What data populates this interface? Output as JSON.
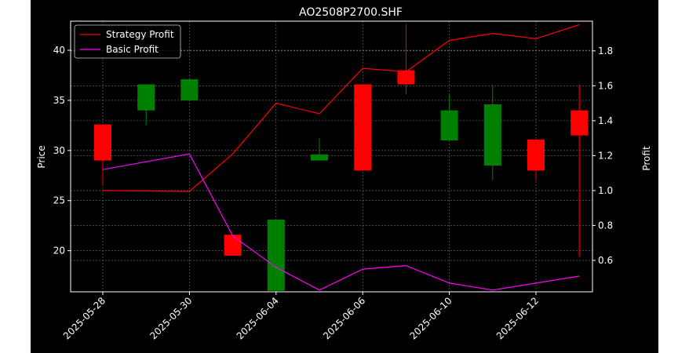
{
  "chart_data": {
    "type": "candlestick",
    "title": "AO2508P2700.SHF",
    "xlabel": "",
    "ylabel_left": "Price",
    "ylabel_right": "Profit",
    "x_tick_labels": [
      "2025-05-28",
      "2025-05-30",
      "2025-06-04",
      "2025-06-06",
      "2025-06-10",
      "2025-06-12"
    ],
    "y_left_ticks": [
      20,
      25,
      30,
      35,
      40
    ],
    "y_right_ticks": [
      "0.6",
      "0.8",
      "1.0",
      "1.2",
      "1.4",
      "1.6",
      "1.8"
    ],
    "ylim_left": [
      15.9,
      42.9
    ],
    "ylim_right": [
      0.42,
      1.97
    ],
    "grid": true,
    "legend_position": "upper-left",
    "candles": [
      {
        "open": 29.0,
        "close": 32.6,
        "high": 32.6,
        "low": 26.5,
        "color": "red"
      },
      {
        "open": 34.0,
        "close": 36.6,
        "high": 36.6,
        "low": 32.5,
        "color": "green"
      },
      {
        "open": 35.0,
        "close": 37.1,
        "high": 37.1,
        "low": 35.0,
        "color": "green"
      },
      {
        "open": 19.5,
        "close": 21.6,
        "high": 21.6,
        "low": 19.5,
        "color": "red"
      },
      {
        "open": 16.0,
        "close": 23.1,
        "high": 23.1,
        "low": 16.0,
        "color": "green"
      },
      {
        "open": 29.0,
        "close": 29.6,
        "high": 31.2,
        "low": 29.0,
        "color": "green"
      },
      {
        "open": 28.0,
        "close": 36.6,
        "high": 36.6,
        "low": 28.0,
        "color": "red"
      },
      {
        "open": 36.6,
        "close": 38.0,
        "high": 42.6,
        "low": 35.6,
        "color": "red"
      },
      {
        "open": 31.0,
        "close": 34.0,
        "high": 35.6,
        "low": 31.0,
        "color": "green"
      },
      {
        "open": 28.5,
        "close": 34.6,
        "high": 36.6,
        "low": 27.0,
        "color": "green"
      },
      {
        "open": 28.0,
        "close": 31.1,
        "high": 31.1,
        "low": 27.0,
        "color": "red"
      },
      {
        "open": 31.5,
        "close": 34.0,
        "high": 36.6,
        "low": 19.4,
        "color": "red"
      }
    ],
    "series": [
      {
        "name": "Strategy Profit",
        "color": "#ff0000",
        "axis": "right",
        "values": [
          1.0,
          null,
          0.995,
          1.21,
          1.5,
          1.44,
          1.7,
          1.68,
          1.86,
          1.9,
          1.87,
          1.95
        ]
      },
      {
        "name": "Basic Profit",
        "color": "#ff00ff",
        "axis": "right",
        "values": [
          1.12,
          null,
          1.21,
          0.74,
          0.56,
          0.43,
          0.55,
          0.57,
          0.47,
          0.43,
          0.47,
          0.51
        ]
      }
    ]
  }
}
